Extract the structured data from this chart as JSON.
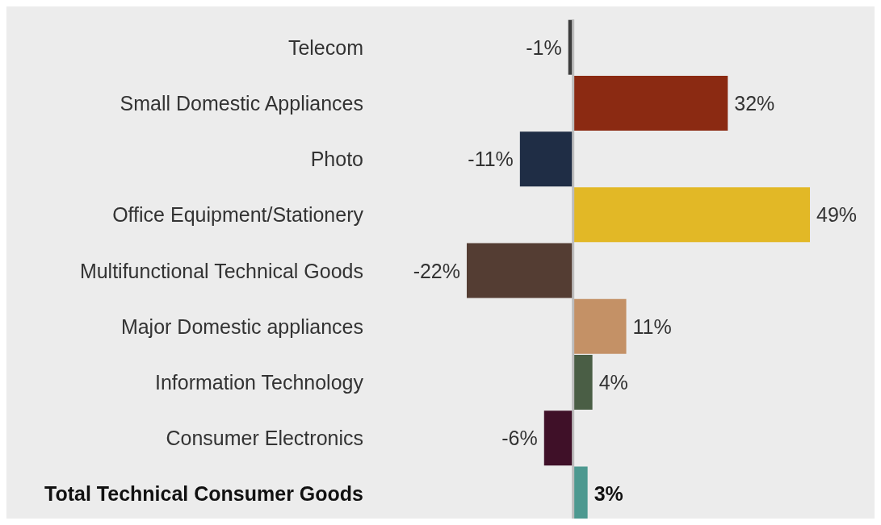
{
  "chart_data": {
    "type": "bar",
    "orientation": "horizontal",
    "categories": [
      "Telecom",
      "Small Domestic Appliances",
      "Photo",
      "Office Equipment/Stationery",
      "Multifunctional Technical Goods",
      "Major Domestic appliances",
      "Information Technology",
      "Consumer Electronics",
      "Total Technical Consumer Goods"
    ],
    "values": [
      -1,
      32,
      -11,
      49,
      -22,
      11,
      4,
      -6,
      3
    ],
    "colors": [
      "#3d3d3d",
      "#8b2a12",
      "#1f2d45",
      "#e2b826",
      "#543d33",
      "#c49166",
      "#4a5e45",
      "#3f1028",
      "#4d9990"
    ],
    "value_labels": [
      "-1%",
      "32%",
      "-11%",
      "49%",
      "-22%",
      "11%",
      "4%",
      "-6%",
      "3%"
    ]
  }
}
